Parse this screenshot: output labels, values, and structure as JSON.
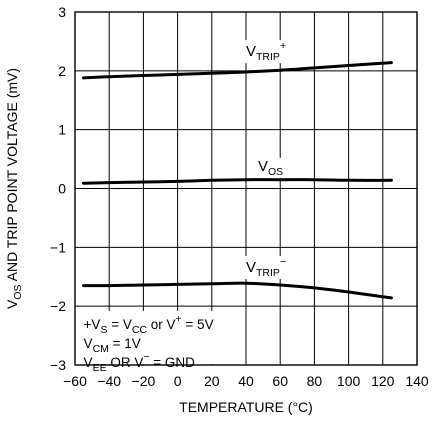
{
  "chart_data": {
    "type": "line",
    "xlabel": "TEMPERATURE (°C)",
    "ylabel": {
      "prefix": "V",
      "sub": "OS",
      "suffix": " AND TRIP POINT VOLTAGE (mV)"
    },
    "xlim": [
      -60,
      140
    ],
    "ylim": [
      -3,
      3
    ],
    "x_ticks": [
      -60,
      -40,
      -20,
      0,
      20,
      40,
      60,
      80,
      100,
      120,
      140
    ],
    "x_tick_labels": [
      "−60",
      "−40",
      "−20",
      "0",
      "20",
      "40",
      "60",
      "80",
      "100",
      "120",
      "140"
    ],
    "y_ticks": [
      -3,
      -2,
      -1,
      0,
      1,
      2,
      3
    ],
    "y_tick_labels": [
      "−3",
      "−2",
      "−1",
      "0",
      "1",
      "2",
      "3"
    ],
    "grid": true,
    "series": [
      {
        "key": "vtrip_plus",
        "label": {
          "base": "V",
          "sub": "TRIP",
          "sup": "+"
        },
        "label_anchor": {
          "x": 40,
          "y": 2.25
        },
        "x": [
          -55,
          -40,
          -20,
          0,
          20,
          40,
          60,
          80,
          100,
          125
        ],
        "y": [
          1.88,
          1.9,
          1.92,
          1.94,
          1.96,
          1.98,
          2.01,
          2.05,
          2.09,
          2.14
        ]
      },
      {
        "key": "vos",
        "label": {
          "base": "V",
          "sub": "OS",
          "sup": ""
        },
        "label_anchor": {
          "x": 47,
          "y": 0.3
        },
        "x": [
          -55,
          -40,
          -20,
          0,
          20,
          40,
          60,
          80,
          100,
          125
        ],
        "y": [
          0.09,
          0.1,
          0.11,
          0.12,
          0.14,
          0.15,
          0.15,
          0.15,
          0.14,
          0.14
        ]
      },
      {
        "key": "vtrip_minus",
        "label": {
          "base": "V",
          "sub": "TRIP",
          "sup": "−"
        },
        "label_anchor": {
          "x": 40,
          "y": -1.42
        },
        "x": [
          -55,
          -40,
          -20,
          0,
          20,
          40,
          60,
          80,
          100,
          125
        ],
        "y": [
          -1.65,
          -1.65,
          -1.64,
          -1.63,
          -1.62,
          -1.61,
          -1.64,
          -1.69,
          -1.76,
          -1.86
        ]
      }
    ],
    "conditions": [
      [
        {
          "t": "+V"
        },
        {
          "t": "S",
          "sub": true
        },
        {
          "t": " = V"
        },
        {
          "t": "CC",
          "sub": true
        },
        {
          "t": " or V"
        },
        {
          "t": "+",
          "sup": true
        },
        {
          "t": " = 5V"
        }
      ],
      [
        {
          "t": "V"
        },
        {
          "t": "CM",
          "sub": true
        },
        {
          "t": " = 1V"
        }
      ],
      [
        {
          "t": "V"
        },
        {
          "t": "EE",
          "sub": true
        },
        {
          "t": " OR V"
        },
        {
          "t": "−",
          "sup": true
        },
        {
          "t": " = GND"
        }
      ]
    ],
    "colors": {
      "line": "#000000",
      "grid": "#000000",
      "background": "#ffffff"
    }
  }
}
